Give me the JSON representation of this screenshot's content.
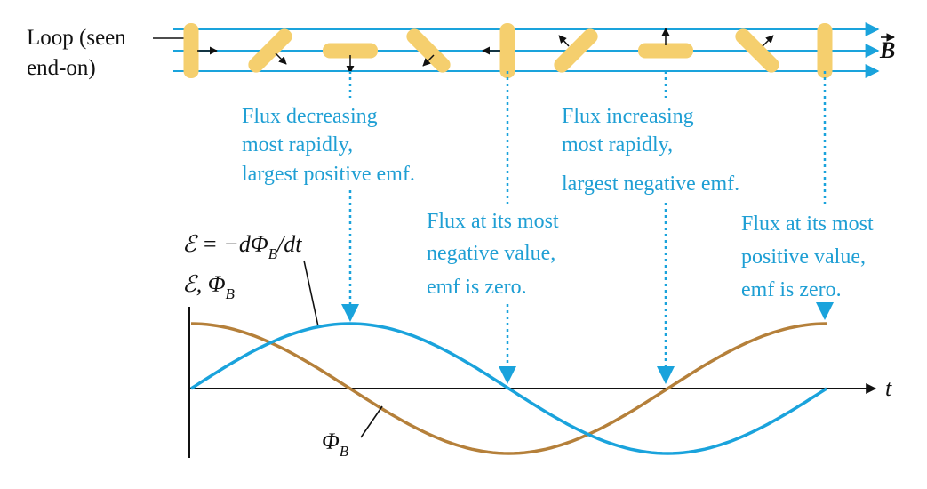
{
  "labels": {
    "loop_line1": "Loop (seen",
    "loop_line2": "end-on)",
    "b_field": "B",
    "emf_formula_prefix": "ℰ = −dΦ",
    "emf_formula_sub": "B",
    "emf_formula_suffix": "/dt",
    "axis_label_prefix": "ℰ, Φ",
    "axis_label_sub": "B",
    "time_axis": "t",
    "phi_label": "Φ",
    "phi_label_sub": "B"
  },
  "annotations": {
    "decreasing": [
      "Flux decreasing",
      "most rapidly,",
      "largest positive emf."
    ],
    "increasing": [
      "Flux increasing",
      "most rapidly,",
      "largest negative emf."
    ],
    "most_negative": [
      "Flux at its most",
      "negative value,",
      "emf is zero."
    ],
    "most_positive": [
      "Flux at its most",
      "positive value,",
      "emf is zero."
    ]
  },
  "colors": {
    "field_lines": "#1aa3dc",
    "emf_curve": "#1aa3dc",
    "flux_curve": "#b5803a",
    "loop": "#f5cf6e",
    "annotation_text": "#1f9fd4",
    "arrows": "#111111"
  },
  "chart_data": {
    "type": "line",
    "x_label": "t",
    "y_label": "ℰ, Φ_B",
    "series": [
      {
        "name": "ℰ = −dΦ_B/dt",
        "function": "sine",
        "amplitude": 1,
        "cycles": 1
      },
      {
        "name": "Φ_B",
        "function": "cosine",
        "amplitude": 1,
        "cycles": 1
      }
    ],
    "loop_angles_deg": [
      90,
      45,
      0,
      -45,
      90,
      45,
      0,
      -45,
      90
    ]
  }
}
